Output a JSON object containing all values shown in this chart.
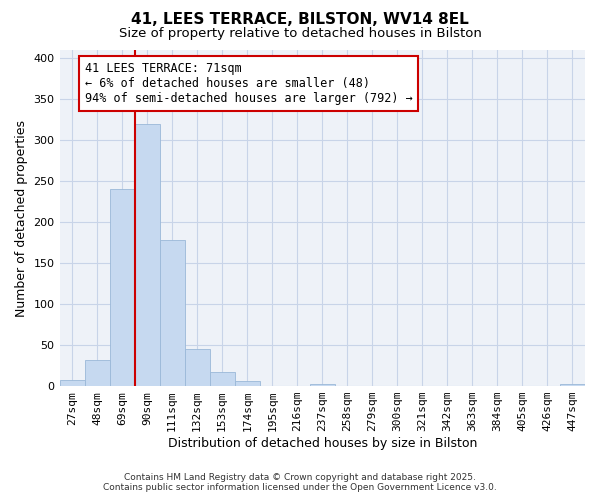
{
  "title": "41, LEES TERRACE, BILSTON, WV14 8EL",
  "subtitle": "Size of property relative to detached houses in Bilston",
  "xlabel": "Distribution of detached houses by size in Bilston",
  "ylabel": "Number of detached properties",
  "bar_labels": [
    "27sqm",
    "48sqm",
    "69sqm",
    "90sqm",
    "111sqm",
    "132sqm",
    "153sqm",
    "174sqm",
    "195sqm",
    "216sqm",
    "237sqm",
    "258sqm",
    "279sqm",
    "300sqm",
    "321sqm",
    "342sqm",
    "363sqm",
    "384sqm",
    "405sqm",
    "426sqm",
    "447sqm"
  ],
  "bar_values": [
    8,
    32,
    240,
    320,
    178,
    45,
    17,
    6,
    0,
    0,
    3,
    0,
    0,
    0,
    0,
    0,
    0,
    0,
    0,
    0,
    2
  ],
  "bar_color": "#c6d9f0",
  "bar_edge_color": "#9ab8d8",
  "vline_bar_index": 2,
  "vline_color": "#cc0000",
  "annotation_text": "41 LEES TERRACE: 71sqm\n← 6% of detached houses are smaller (48)\n94% of semi-detached houses are larger (792) →",
  "annotation_box_facecolor": "#ffffff",
  "annotation_box_edgecolor": "#cc0000",
  "ylim_max": 410,
  "yticks": [
    0,
    50,
    100,
    150,
    200,
    250,
    300,
    350,
    400
  ],
  "footer1": "Contains HM Land Registry data © Crown copyright and database right 2025.",
  "footer2": "Contains public sector information licensed under the Open Government Licence v3.0.",
  "bg_color": "#ffffff",
  "plot_bg_color": "#eef2f8",
  "grid_color": "#c8d4e8",
  "title_fontsize": 11,
  "subtitle_fontsize": 9.5,
  "axis_label_fontsize": 9,
  "tick_fontsize": 8,
  "annotation_fontsize": 8.5,
  "footer_fontsize": 6.5
}
